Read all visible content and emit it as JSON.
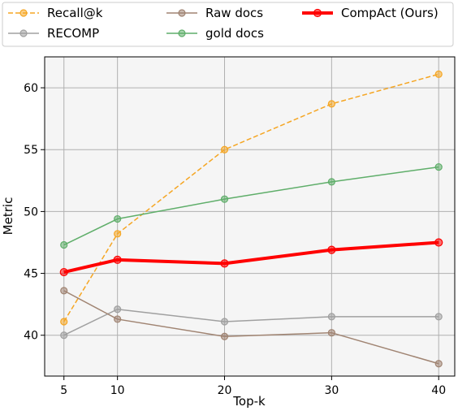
{
  "chart_data": {
    "type": "line",
    "xlabel": "Top-k",
    "ylabel": "Metric",
    "x": [
      5,
      10,
      20,
      30,
      40
    ],
    "xlim": [
      3.2,
      41.5
    ],
    "ylim": [
      36.7,
      62.5
    ],
    "xticks": [
      5,
      10,
      20,
      30,
      40
    ],
    "yticks": [
      40,
      45,
      50,
      55,
      60
    ],
    "grid": true,
    "legend_position": "top",
    "series": [
      {
        "name": "Recall@k",
        "values": [
          41.1,
          48.2,
          55.0,
          58.7,
          61.1
        ],
        "color": "#f5a623",
        "style": "dashed",
        "width": 1.5,
        "marker": 4
      },
      {
        "name": "RECOMP",
        "values": [
          40.0,
          42.1,
          41.1,
          41.5,
          41.5
        ],
        "color": "#a0a0a0",
        "style": "solid",
        "width": 1.5,
        "marker": 4
      },
      {
        "name": "Raw docs",
        "values": [
          43.6,
          41.3,
          39.9,
          40.2,
          37.7
        ],
        "color": "#a08472",
        "style": "solid",
        "width": 1.5,
        "marker": 4
      },
      {
        "name": "gold docs",
        "values": [
          47.3,
          49.4,
          51.0,
          52.4,
          53.6
        ],
        "color": "#5fae6a",
        "style": "solid",
        "width": 1.5,
        "marker": 4
      },
      {
        "name": "CompAct (Ours)",
        "values": [
          45.1,
          46.1,
          45.8,
          46.9,
          47.5
        ],
        "color": "#ff0000",
        "style": "solid",
        "width": 4,
        "marker": 4.5
      }
    ]
  }
}
